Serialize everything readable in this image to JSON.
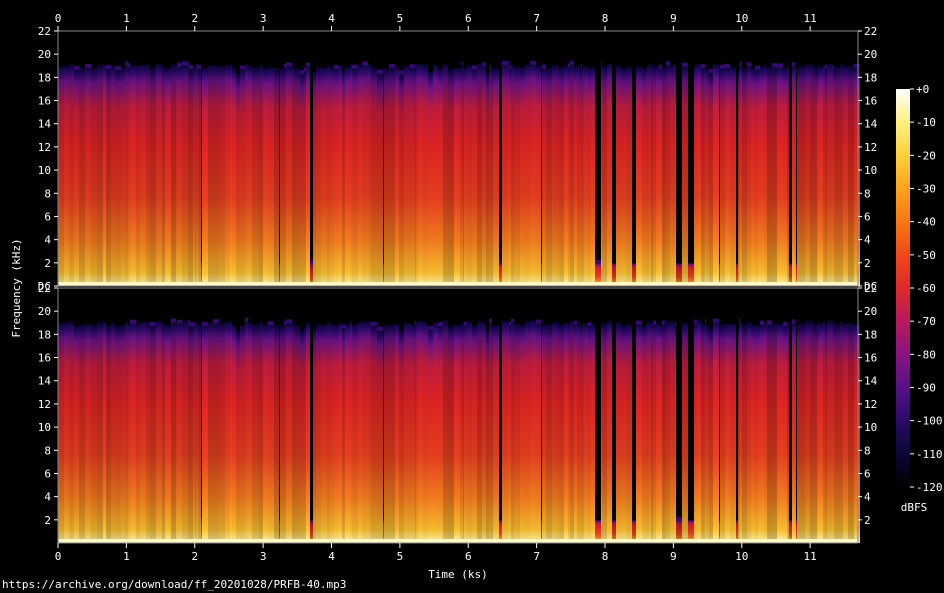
{
  "chart_data": {
    "type": "heatmap",
    "title": "",
    "xlabel": "Time (ks)",
    "ylabel": "Frequency (kHz)",
    "x_ticks": [
      "0",
      "1",
      "2",
      "3",
      "4",
      "5",
      "6",
      "7",
      "8",
      "9",
      "10",
      "11"
    ],
    "xlim": [
      0,
      11.7
    ],
    "channels": [
      {
        "ylim": [
          0,
          22
        ],
        "y_ticks": [
          "DC",
          "2",
          "4",
          "6",
          "8",
          "10",
          "12",
          "14",
          "16",
          "18",
          "20",
          "22"
        ]
      },
      {
        "ylim": [
          0,
          22
        ],
        "y_ticks": [
          "2",
          "4",
          "6",
          "8",
          "10",
          "12",
          "14",
          "16",
          "18",
          "20",
          "22"
        ]
      }
    ],
    "spectral_cutoff_khz": 19,
    "colorbar": {
      "label": "dBFS",
      "range": [
        -120,
        0
      ],
      "ticks": [
        "+0",
        "-10",
        "-20",
        "-30",
        "-40",
        "-50",
        "-60",
        "-70",
        "-80",
        "-90",
        "-100",
        "-110",
        "-120"
      ],
      "colors": [
        "#000000",
        "#0a0636",
        "#2a0a6a",
        "#58108a",
        "#8a1480",
        "#b81860",
        "#e02a2a",
        "#f04818",
        "#f87812",
        "#fca41a",
        "#fdd03a",
        "#fef080",
        "#ffffff"
      ]
    }
  },
  "source_url": "https://archive.org/download/ff_20201028/PRFB-40.mp3"
}
